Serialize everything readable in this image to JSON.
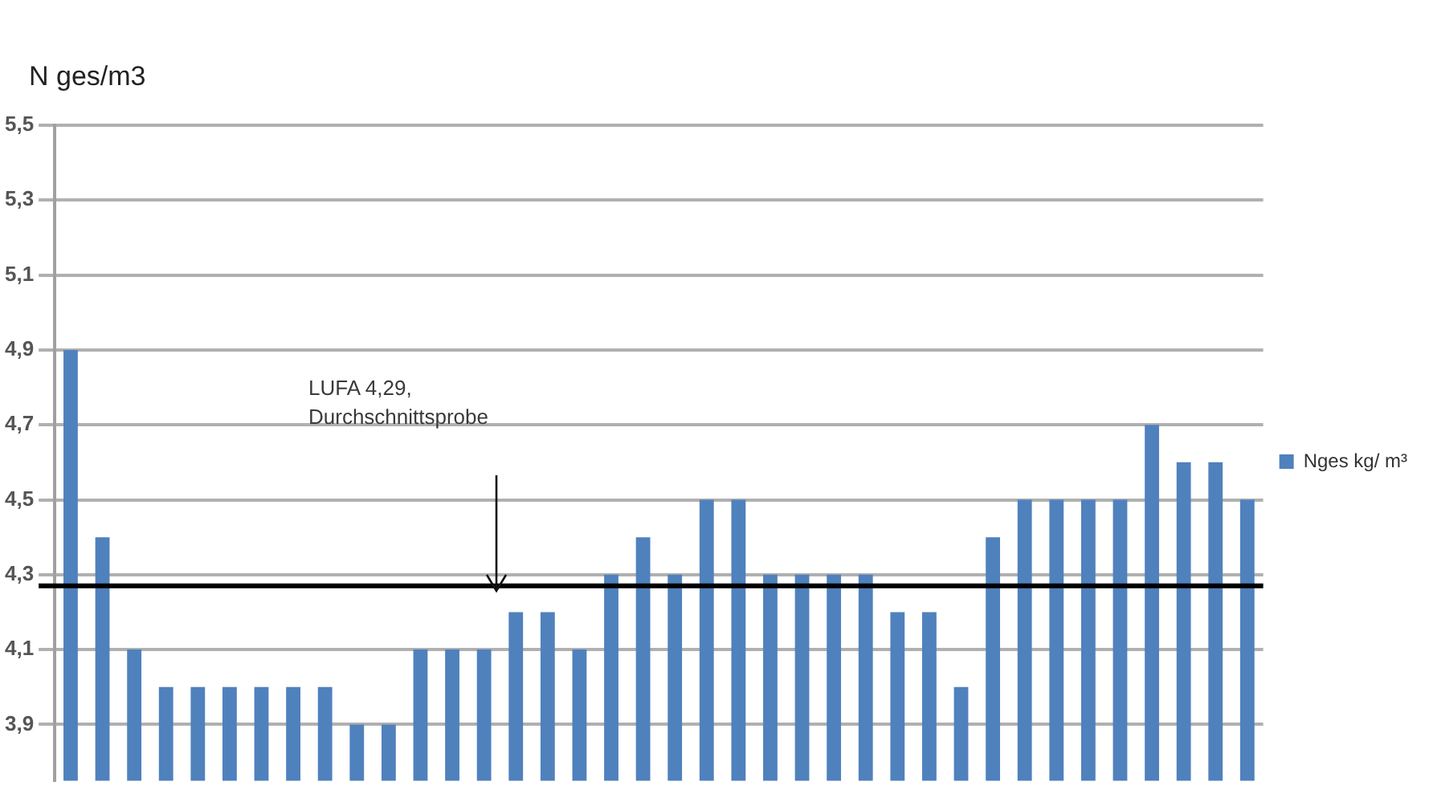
{
  "chart_data": {
    "type": "bar",
    "ylabel": "N ges/m3",
    "categories": [
      null,
      null,
      null,
      null,
      null,
      null,
      null,
      null,
      null,
      null,
      null,
      null,
      null,
      null,
      null,
      null,
      null,
      null,
      null,
      null,
      null,
      null,
      null,
      null,
      null,
      null,
      null,
      null,
      null,
      null,
      null,
      null,
      null,
      null,
      null,
      null,
      null,
      null
    ],
    "series": [
      {
        "name": "Nges kg/ m³",
        "color": "#4f81bd",
        "values": [
          4.9,
          4.4,
          4.1,
          4.0,
          4.0,
          4.0,
          4.0,
          4.0,
          4.0,
          3.9,
          3.9,
          4.1,
          4.1,
          4.1,
          4.2,
          4.2,
          4.1,
          4.3,
          4.4,
          4.3,
          4.5,
          4.5,
          4.3,
          4.3,
          4.3,
          4.3,
          4.2,
          4.2,
          4.0,
          4.4,
          4.5,
          4.5,
          4.5,
          4.5,
          4.7,
          4.6,
          4.6,
          4.5
        ]
      }
    ],
    "ylim": [
      3.75,
      5.5
    ],
    "yticks": [
      {
        "value": 3.9,
        "label": "3,9"
      },
      {
        "value": 4.1,
        "label": "4,1"
      },
      {
        "value": 4.3,
        "label": "4,3"
      },
      {
        "value": 4.5,
        "label": "4,5"
      },
      {
        "value": 4.7,
        "label": "4,7"
      },
      {
        "value": 4.9,
        "label": "4,9"
      },
      {
        "value": 5.1,
        "label": "5,1"
      },
      {
        "value": 5.3,
        "label": "5,3"
      },
      {
        "value": 5.5,
        "label": "5,5"
      }
    ],
    "ref_lines": [
      {
        "axis": "y",
        "value": 4.27,
        "color": "#000000"
      }
    ],
    "annotations": [
      "LUFA 4,29,\nDurchschnittsprobe"
    ],
    "grid": "y",
    "legend": "right",
    "tick_labels": "y"
  }
}
